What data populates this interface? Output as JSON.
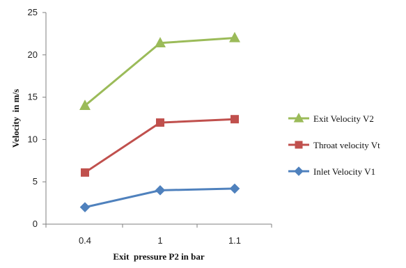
{
  "chart_data": {
    "type": "line",
    "title": "",
    "xlabel": "Exit  pressure P2 in bar",
    "ylabel": "Velocity  in m/s",
    "categories": [
      "0.4",
      "1",
      "1.1"
    ],
    "yticks": [
      "0",
      "5",
      "10",
      "15",
      "20",
      "25"
    ],
    "ylim": [
      0,
      25
    ],
    "grid": false,
    "legend": "right",
    "series": [
      {
        "name": "Exit Velocity V2",
        "values": [
          14,
          21.4,
          22
        ],
        "color": "#9bbb59",
        "marker": "triangle"
      },
      {
        "name": "Throat velocity Vt",
        "values": [
          6.1,
          12,
          12.4
        ],
        "color": "#c0504d",
        "marker": "square"
      },
      {
        "name": "Inlet Velocity V1",
        "values": [
          2,
          4,
          4.2
        ],
        "color": "#4f81bd",
        "marker": "diamond"
      }
    ]
  }
}
